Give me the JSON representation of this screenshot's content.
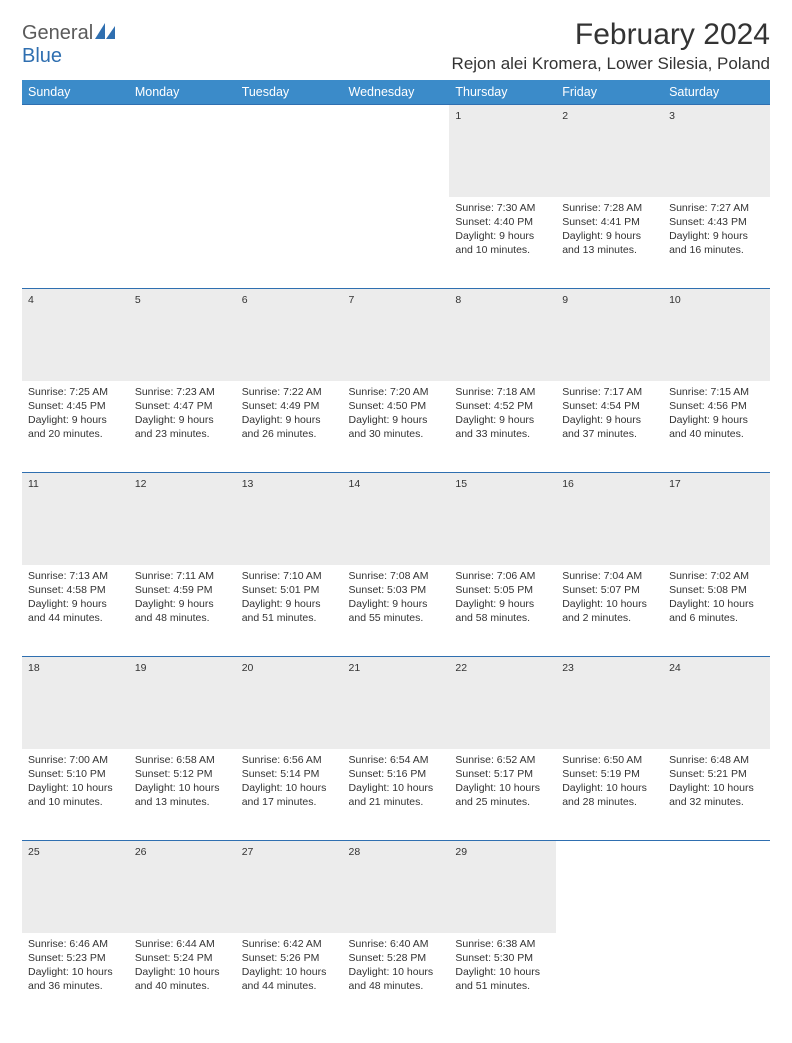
{
  "brand": {
    "word1": "General",
    "word2": "Blue",
    "text_color_1": "#5a5a5a",
    "text_color_2": "#2f6fb0",
    "icon_fill": "#2f6fb0"
  },
  "header": {
    "month_title": "February 2024",
    "location": "Rejon alei Kromera, Lower Silesia, Poland"
  },
  "colors": {
    "header_bg": "#3b8bc9",
    "header_text": "#ffffff",
    "row_border": "#2f6fb0",
    "daynum_bg": "#ececec",
    "daynum_text": "#555555",
    "body_text": "#333333",
    "page_bg": "#ffffff"
  },
  "weekdays": [
    "Sunday",
    "Monday",
    "Tuesday",
    "Wednesday",
    "Thursday",
    "Friday",
    "Saturday"
  ],
  "weeks": [
    {
      "nums": [
        "",
        "",
        "",
        "",
        "1",
        "2",
        "3"
      ],
      "cells": [
        null,
        null,
        null,
        null,
        {
          "sunrise": "Sunrise: 7:30 AM",
          "sunset": "Sunset: 4:40 PM",
          "d1": "Daylight: 9 hours",
          "d2": "and 10 minutes."
        },
        {
          "sunrise": "Sunrise: 7:28 AM",
          "sunset": "Sunset: 4:41 PM",
          "d1": "Daylight: 9 hours",
          "d2": "and 13 minutes."
        },
        {
          "sunrise": "Sunrise: 7:27 AM",
          "sunset": "Sunset: 4:43 PM",
          "d1": "Daylight: 9 hours",
          "d2": "and 16 minutes."
        }
      ]
    },
    {
      "nums": [
        "4",
        "5",
        "6",
        "7",
        "8",
        "9",
        "10"
      ],
      "cells": [
        {
          "sunrise": "Sunrise: 7:25 AM",
          "sunset": "Sunset: 4:45 PM",
          "d1": "Daylight: 9 hours",
          "d2": "and 20 minutes."
        },
        {
          "sunrise": "Sunrise: 7:23 AM",
          "sunset": "Sunset: 4:47 PM",
          "d1": "Daylight: 9 hours",
          "d2": "and 23 minutes."
        },
        {
          "sunrise": "Sunrise: 7:22 AM",
          "sunset": "Sunset: 4:49 PM",
          "d1": "Daylight: 9 hours",
          "d2": "and 26 minutes."
        },
        {
          "sunrise": "Sunrise: 7:20 AM",
          "sunset": "Sunset: 4:50 PM",
          "d1": "Daylight: 9 hours",
          "d2": "and 30 minutes."
        },
        {
          "sunrise": "Sunrise: 7:18 AM",
          "sunset": "Sunset: 4:52 PM",
          "d1": "Daylight: 9 hours",
          "d2": "and 33 minutes."
        },
        {
          "sunrise": "Sunrise: 7:17 AM",
          "sunset": "Sunset: 4:54 PM",
          "d1": "Daylight: 9 hours",
          "d2": "and 37 minutes."
        },
        {
          "sunrise": "Sunrise: 7:15 AM",
          "sunset": "Sunset: 4:56 PM",
          "d1": "Daylight: 9 hours",
          "d2": "and 40 minutes."
        }
      ]
    },
    {
      "nums": [
        "11",
        "12",
        "13",
        "14",
        "15",
        "16",
        "17"
      ],
      "cells": [
        {
          "sunrise": "Sunrise: 7:13 AM",
          "sunset": "Sunset: 4:58 PM",
          "d1": "Daylight: 9 hours",
          "d2": "and 44 minutes."
        },
        {
          "sunrise": "Sunrise: 7:11 AM",
          "sunset": "Sunset: 4:59 PM",
          "d1": "Daylight: 9 hours",
          "d2": "and 48 minutes."
        },
        {
          "sunrise": "Sunrise: 7:10 AM",
          "sunset": "Sunset: 5:01 PM",
          "d1": "Daylight: 9 hours",
          "d2": "and 51 minutes."
        },
        {
          "sunrise": "Sunrise: 7:08 AM",
          "sunset": "Sunset: 5:03 PM",
          "d1": "Daylight: 9 hours",
          "d2": "and 55 minutes."
        },
        {
          "sunrise": "Sunrise: 7:06 AM",
          "sunset": "Sunset: 5:05 PM",
          "d1": "Daylight: 9 hours",
          "d2": "and 58 minutes."
        },
        {
          "sunrise": "Sunrise: 7:04 AM",
          "sunset": "Sunset: 5:07 PM",
          "d1": "Daylight: 10 hours",
          "d2": "and 2 minutes."
        },
        {
          "sunrise": "Sunrise: 7:02 AM",
          "sunset": "Sunset: 5:08 PM",
          "d1": "Daylight: 10 hours",
          "d2": "and 6 minutes."
        }
      ]
    },
    {
      "nums": [
        "18",
        "19",
        "20",
        "21",
        "22",
        "23",
        "24"
      ],
      "cells": [
        {
          "sunrise": "Sunrise: 7:00 AM",
          "sunset": "Sunset: 5:10 PM",
          "d1": "Daylight: 10 hours",
          "d2": "and 10 minutes."
        },
        {
          "sunrise": "Sunrise: 6:58 AM",
          "sunset": "Sunset: 5:12 PM",
          "d1": "Daylight: 10 hours",
          "d2": "and 13 minutes."
        },
        {
          "sunrise": "Sunrise: 6:56 AM",
          "sunset": "Sunset: 5:14 PM",
          "d1": "Daylight: 10 hours",
          "d2": "and 17 minutes."
        },
        {
          "sunrise": "Sunrise: 6:54 AM",
          "sunset": "Sunset: 5:16 PM",
          "d1": "Daylight: 10 hours",
          "d2": "and 21 minutes."
        },
        {
          "sunrise": "Sunrise: 6:52 AM",
          "sunset": "Sunset: 5:17 PM",
          "d1": "Daylight: 10 hours",
          "d2": "and 25 minutes."
        },
        {
          "sunrise": "Sunrise: 6:50 AM",
          "sunset": "Sunset: 5:19 PM",
          "d1": "Daylight: 10 hours",
          "d2": "and 28 minutes."
        },
        {
          "sunrise": "Sunrise: 6:48 AM",
          "sunset": "Sunset: 5:21 PM",
          "d1": "Daylight: 10 hours",
          "d2": "and 32 minutes."
        }
      ]
    },
    {
      "nums": [
        "25",
        "26",
        "27",
        "28",
        "29",
        "",
        ""
      ],
      "cells": [
        {
          "sunrise": "Sunrise: 6:46 AM",
          "sunset": "Sunset: 5:23 PM",
          "d1": "Daylight: 10 hours",
          "d2": "and 36 minutes."
        },
        {
          "sunrise": "Sunrise: 6:44 AM",
          "sunset": "Sunset: 5:24 PM",
          "d1": "Daylight: 10 hours",
          "d2": "and 40 minutes."
        },
        {
          "sunrise": "Sunrise: 6:42 AM",
          "sunset": "Sunset: 5:26 PM",
          "d1": "Daylight: 10 hours",
          "d2": "and 44 minutes."
        },
        {
          "sunrise": "Sunrise: 6:40 AM",
          "sunset": "Sunset: 5:28 PM",
          "d1": "Daylight: 10 hours",
          "d2": "and 48 minutes."
        },
        {
          "sunrise": "Sunrise: 6:38 AM",
          "sunset": "Sunset: 5:30 PM",
          "d1": "Daylight: 10 hours",
          "d2": "and 51 minutes."
        },
        null,
        null
      ]
    }
  ]
}
